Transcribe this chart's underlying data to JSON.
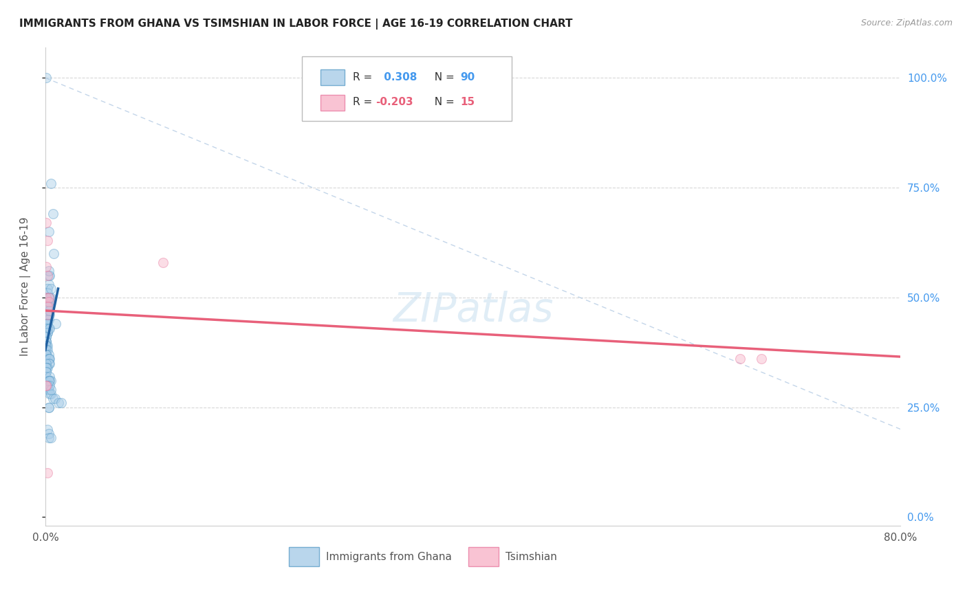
{
  "title": "IMMIGRANTS FROM GHANA VS TSIMSHIAN IN LABOR FORCE | AGE 16-19 CORRELATION CHART",
  "source": "Source: ZipAtlas.com",
  "ylabel": "In Labor Force | Age 16-19",
  "xlim": [
    0.0,
    0.8
  ],
  "ylim": [
    -0.02,
    1.07
  ],
  "ghana_color": "#a8cce8",
  "ghana_color_edge": "#5b9ec9",
  "tsimshian_color": "#f8b4c8",
  "tsimshian_color_edge": "#e87aa0",
  "ghana_R": 0.308,
  "ghana_N": 90,
  "tsimshian_R": -0.203,
  "tsimshian_N": 15,
  "ghana_points_x": [
    0.001,
    0.005,
    0.007,
    0.003,
    0.008,
    0.003,
    0.003,
    0.002,
    0.002,
    0.001,
    0.003,
    0.004,
    0.003,
    0.002,
    0.003,
    0.003,
    0.002,
    0.002,
    0.003,
    0.004,
    0.003,
    0.002,
    0.001,
    0.001,
    0.002,
    0.002,
    0.003,
    0.002,
    0.001,
    0.001,
    0.002,
    0.002,
    0.001,
    0.001,
    0.001,
    0.001,
    0.001,
    0.002,
    0.001,
    0.001,
    0.001,
    0.001,
    0.002,
    0.003,
    0.001,
    0.001,
    0.003,
    0.003,
    0.004,
    0.004,
    0.003,
    0.001,
    0.002,
    0.001,
    0.001,
    0.001,
    0.001,
    0.001,
    0.004,
    0.005,
    0.003,
    0.003,
    0.004,
    0.005,
    0.003,
    0.002,
    0.002,
    0.002,
    0.003,
    0.004,
    0.005,
    0.007,
    0.009,
    0.012,
    0.015,
    0.005,
    0.003,
    0.003,
    0.002,
    0.003,
    0.003,
    0.005,
    0.004,
    0.003,
    0.003,
    0.004,
    0.004,
    0.005,
    0.01,
    0.004
  ],
  "ghana_points_y": [
    1.0,
    0.76,
    0.69,
    0.65,
    0.6,
    0.55,
    0.53,
    0.52,
    0.51,
    0.5,
    0.5,
    0.5,
    0.49,
    0.49,
    0.48,
    0.47,
    0.47,
    0.46,
    0.46,
    0.46,
    0.45,
    0.45,
    0.44,
    0.44,
    0.44,
    0.44,
    0.43,
    0.43,
    0.43,
    0.42,
    0.42,
    0.42,
    0.41,
    0.41,
    0.4,
    0.4,
    0.4,
    0.39,
    0.39,
    0.39,
    0.38,
    0.38,
    0.38,
    0.37,
    0.37,
    0.37,
    0.36,
    0.36,
    0.36,
    0.35,
    0.35,
    0.35,
    0.34,
    0.34,
    0.34,
    0.33,
    0.33,
    0.32,
    0.32,
    0.31,
    0.31,
    0.31,
    0.31,
    0.5,
    0.5,
    0.3,
    0.3,
    0.29,
    0.29,
    0.28,
    0.28,
    0.27,
    0.27,
    0.26,
    0.26,
    0.52,
    0.25,
    0.25,
    0.2,
    0.19,
    0.18,
    0.18,
    0.55,
    0.56,
    0.48,
    0.47,
    0.3,
    0.29,
    0.44,
    0.43
  ],
  "tsimshian_points_x": [
    0.001,
    0.002,
    0.001,
    0.002,
    0.001,
    0.003,
    0.003,
    0.002,
    0.002,
    0.001,
    0.001,
    0.002,
    0.65,
    0.67,
    0.11
  ],
  "tsimshian_points_y": [
    0.67,
    0.63,
    0.57,
    0.55,
    0.5,
    0.5,
    0.49,
    0.48,
    0.46,
    0.3,
    0.3,
    0.1,
    0.36,
    0.36,
    0.58
  ],
  "ghana_line_x": [
    0.0,
    0.012
  ],
  "ghana_line_y": [
    0.38,
    0.52
  ],
  "tsimshian_line_x": [
    0.0,
    0.8
  ],
  "tsimshian_line_y": [
    0.47,
    0.365
  ],
  "diagonal_line_x": [
    0.0,
    0.8
  ],
  "diagonal_line_y": [
    1.0,
    0.2
  ],
  "background_color": "#ffffff",
  "grid_color": "#d8d8d8",
  "marker_size": 100,
  "marker_alpha": 0.45
}
